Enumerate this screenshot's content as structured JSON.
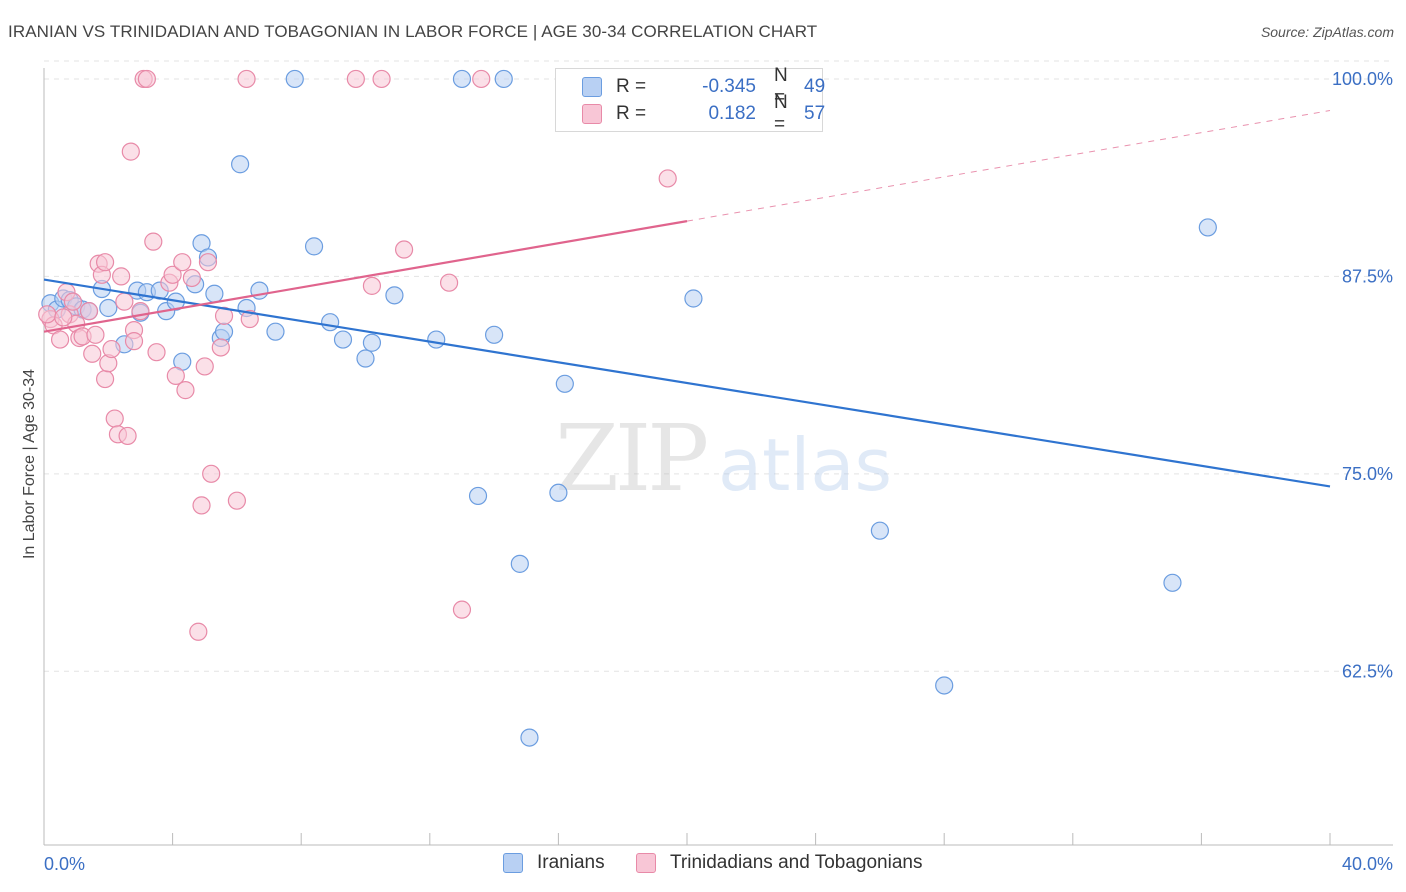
{
  "title": "IRANIAN VS TRINIDADIAN AND TOBAGONIAN IN LABOR FORCE | AGE 30-34 CORRELATION CHART",
  "source": "Source: ZipAtlas.com",
  "watermark": {
    "zip": "ZIP",
    "atlas": "atlas"
  },
  "legend": {
    "rows": [
      {
        "r_label": "R =",
        "r_value": "-0.345",
        "n_label": "N =",
        "n_value": "49",
        "color": "#6b9de0",
        "fill": "#b8d0f3"
      },
      {
        "r_label": "R =",
        "r_value": "0.182",
        "n_label": "N =",
        "n_value": "57",
        "color": "#e88aa8",
        "fill": "#f8c6d6"
      }
    ]
  },
  "bottom_legend": {
    "series1": "Iranians",
    "series2": "Trinidadians and Tobagonians"
  },
  "chart_data": {
    "type": "scatter",
    "title": "IRANIAN VS TRINIDADIAN AND TOBAGONIAN IN LABOR FORCE | AGE 30-34 CORRELATION CHART",
    "xlabel": "",
    "ylabel": "In Labor Force | Age 30-34",
    "xlim": [
      0,
      40
    ],
    "ylim": [
      51.5,
      101.2
    ],
    "x_tick_labels": [
      "0.0%",
      "40.0%"
    ],
    "y_ticks": [
      62.5,
      75.0,
      87.5,
      100.0
    ],
    "y_tick_labels": [
      "62.5%",
      "75.0%",
      "87.5%",
      "100.0%"
    ],
    "grid": true,
    "legend_position": "top-center",
    "series": [
      {
        "name": "Iranians",
        "color": "#6b9de0",
        "fill": "#b8d0f3",
        "line_color": "#2f74d0",
        "trend": {
          "x": [
            0,
            40
          ],
          "y": [
            87.3,
            74.2
          ],
          "dashed_from": null
        },
        "points": [
          [
            0.2,
            85.8
          ],
          [
            0.4,
            85.4
          ],
          [
            0.6,
            86.1
          ],
          [
            0.8,
            86.0
          ],
          [
            1.0,
            85.6
          ],
          [
            1.2,
            85.4
          ],
          [
            1.4,
            85.3
          ],
          [
            1.8,
            86.7
          ],
          [
            2.0,
            85.5
          ],
          [
            2.5,
            83.2
          ],
          [
            2.9,
            86.6
          ],
          [
            3.0,
            85.2
          ],
          [
            3.2,
            86.5
          ],
          [
            3.6,
            86.6
          ],
          [
            3.8,
            85.3
          ],
          [
            4.1,
            85.9
          ],
          [
            4.3,
            82.1
          ],
          [
            4.7,
            87.0
          ],
          [
            4.9,
            89.6
          ],
          [
            5.1,
            88.7
          ],
          [
            5.3,
            86.4
          ],
          [
            5.5,
            83.6
          ],
          [
            5.6,
            84.0
          ],
          [
            6.1,
            94.6
          ],
          [
            6.3,
            85.5
          ],
          [
            6.7,
            86.6
          ],
          [
            7.2,
            84.0
          ],
          [
            7.8,
            100.0
          ],
          [
            8.4,
            89.4
          ],
          [
            8.9,
            84.6
          ],
          [
            9.3,
            83.5
          ],
          [
            10.0,
            82.3
          ],
          [
            10.2,
            83.3
          ],
          [
            10.9,
            86.3
          ],
          [
            12.2,
            83.5
          ],
          [
            13.0,
            100.0
          ],
          [
            14.0,
            83.8
          ],
          [
            14.3,
            100.0
          ],
          [
            13.5,
            73.6
          ],
          [
            14.8,
            69.3
          ],
          [
            15.1,
            58.3
          ],
          [
            16.0,
            73.8
          ],
          [
            16.2,
            80.7
          ],
          [
            20.2,
            86.1
          ],
          [
            21.7,
            100.0
          ],
          [
            26.0,
            71.4
          ],
          [
            28.0,
            61.6
          ],
          [
            35.1,
            68.1
          ],
          [
            36.2,
            90.6
          ]
        ]
      },
      {
        "name": "Trinidadians and Tobagonians",
        "color": "#e88aa8",
        "fill": "#f8c6d6",
        "line_color": "#e0648d",
        "trend": {
          "x": [
            0,
            40
          ],
          "y": [
            84.0,
            98.0
          ],
          "dashed_from": 20
        },
        "points": [
          [
            0.2,
            84.8
          ],
          [
            0.3,
            84.4
          ],
          [
            0.5,
            83.5
          ],
          [
            0.7,
            86.5
          ],
          [
            0.8,
            85.1
          ],
          [
            1.0,
            84.5
          ],
          [
            1.1,
            83.6
          ],
          [
            1.2,
            83.7
          ],
          [
            1.4,
            85.3
          ],
          [
            1.5,
            82.6
          ],
          [
            1.6,
            83.8
          ],
          [
            1.7,
            88.3
          ],
          [
            1.8,
            87.6
          ],
          [
            1.9,
            88.4
          ],
          [
            1.9,
            81.0
          ],
          [
            2.0,
            82.0
          ],
          [
            2.1,
            82.9
          ],
          [
            2.2,
            78.5
          ],
          [
            2.3,
            77.5
          ],
          [
            2.4,
            87.5
          ],
          [
            2.5,
            85.9
          ],
          [
            2.6,
            77.4
          ],
          [
            2.7,
            95.4
          ],
          [
            2.8,
            84.1
          ],
          [
            2.8,
            83.4
          ],
          [
            3.0,
            85.3
          ],
          [
            3.1,
            100.0
          ],
          [
            3.2,
            100.0
          ],
          [
            3.4,
            89.7
          ],
          [
            3.5,
            82.7
          ],
          [
            3.9,
            87.1
          ],
          [
            4.0,
            87.6
          ],
          [
            4.1,
            81.2
          ],
          [
            4.3,
            88.4
          ],
          [
            4.4,
            80.3
          ],
          [
            4.6,
            87.4
          ],
          [
            4.8,
            65.0
          ],
          [
            4.9,
            73.0
          ],
          [
            5.0,
            81.8
          ],
          [
            5.1,
            88.4
          ],
          [
            5.2,
            75.0
          ],
          [
            5.5,
            83.0
          ],
          [
            5.6,
            85.0
          ],
          [
            6.0,
            73.3
          ],
          [
            6.3,
            100.0
          ],
          [
            6.4,
            84.8
          ],
          [
            9.7,
            100.0
          ],
          [
            10.2,
            86.9
          ],
          [
            10.5,
            100.0
          ],
          [
            11.2,
            89.2
          ],
          [
            12.6,
            87.1
          ],
          [
            13.0,
            66.4
          ],
          [
            13.6,
            100.0
          ],
          [
            19.4,
            93.7
          ],
          [
            0.1,
            85.1
          ],
          [
            0.6,
            84.9
          ],
          [
            0.9,
            85.9
          ]
        ]
      }
    ]
  }
}
